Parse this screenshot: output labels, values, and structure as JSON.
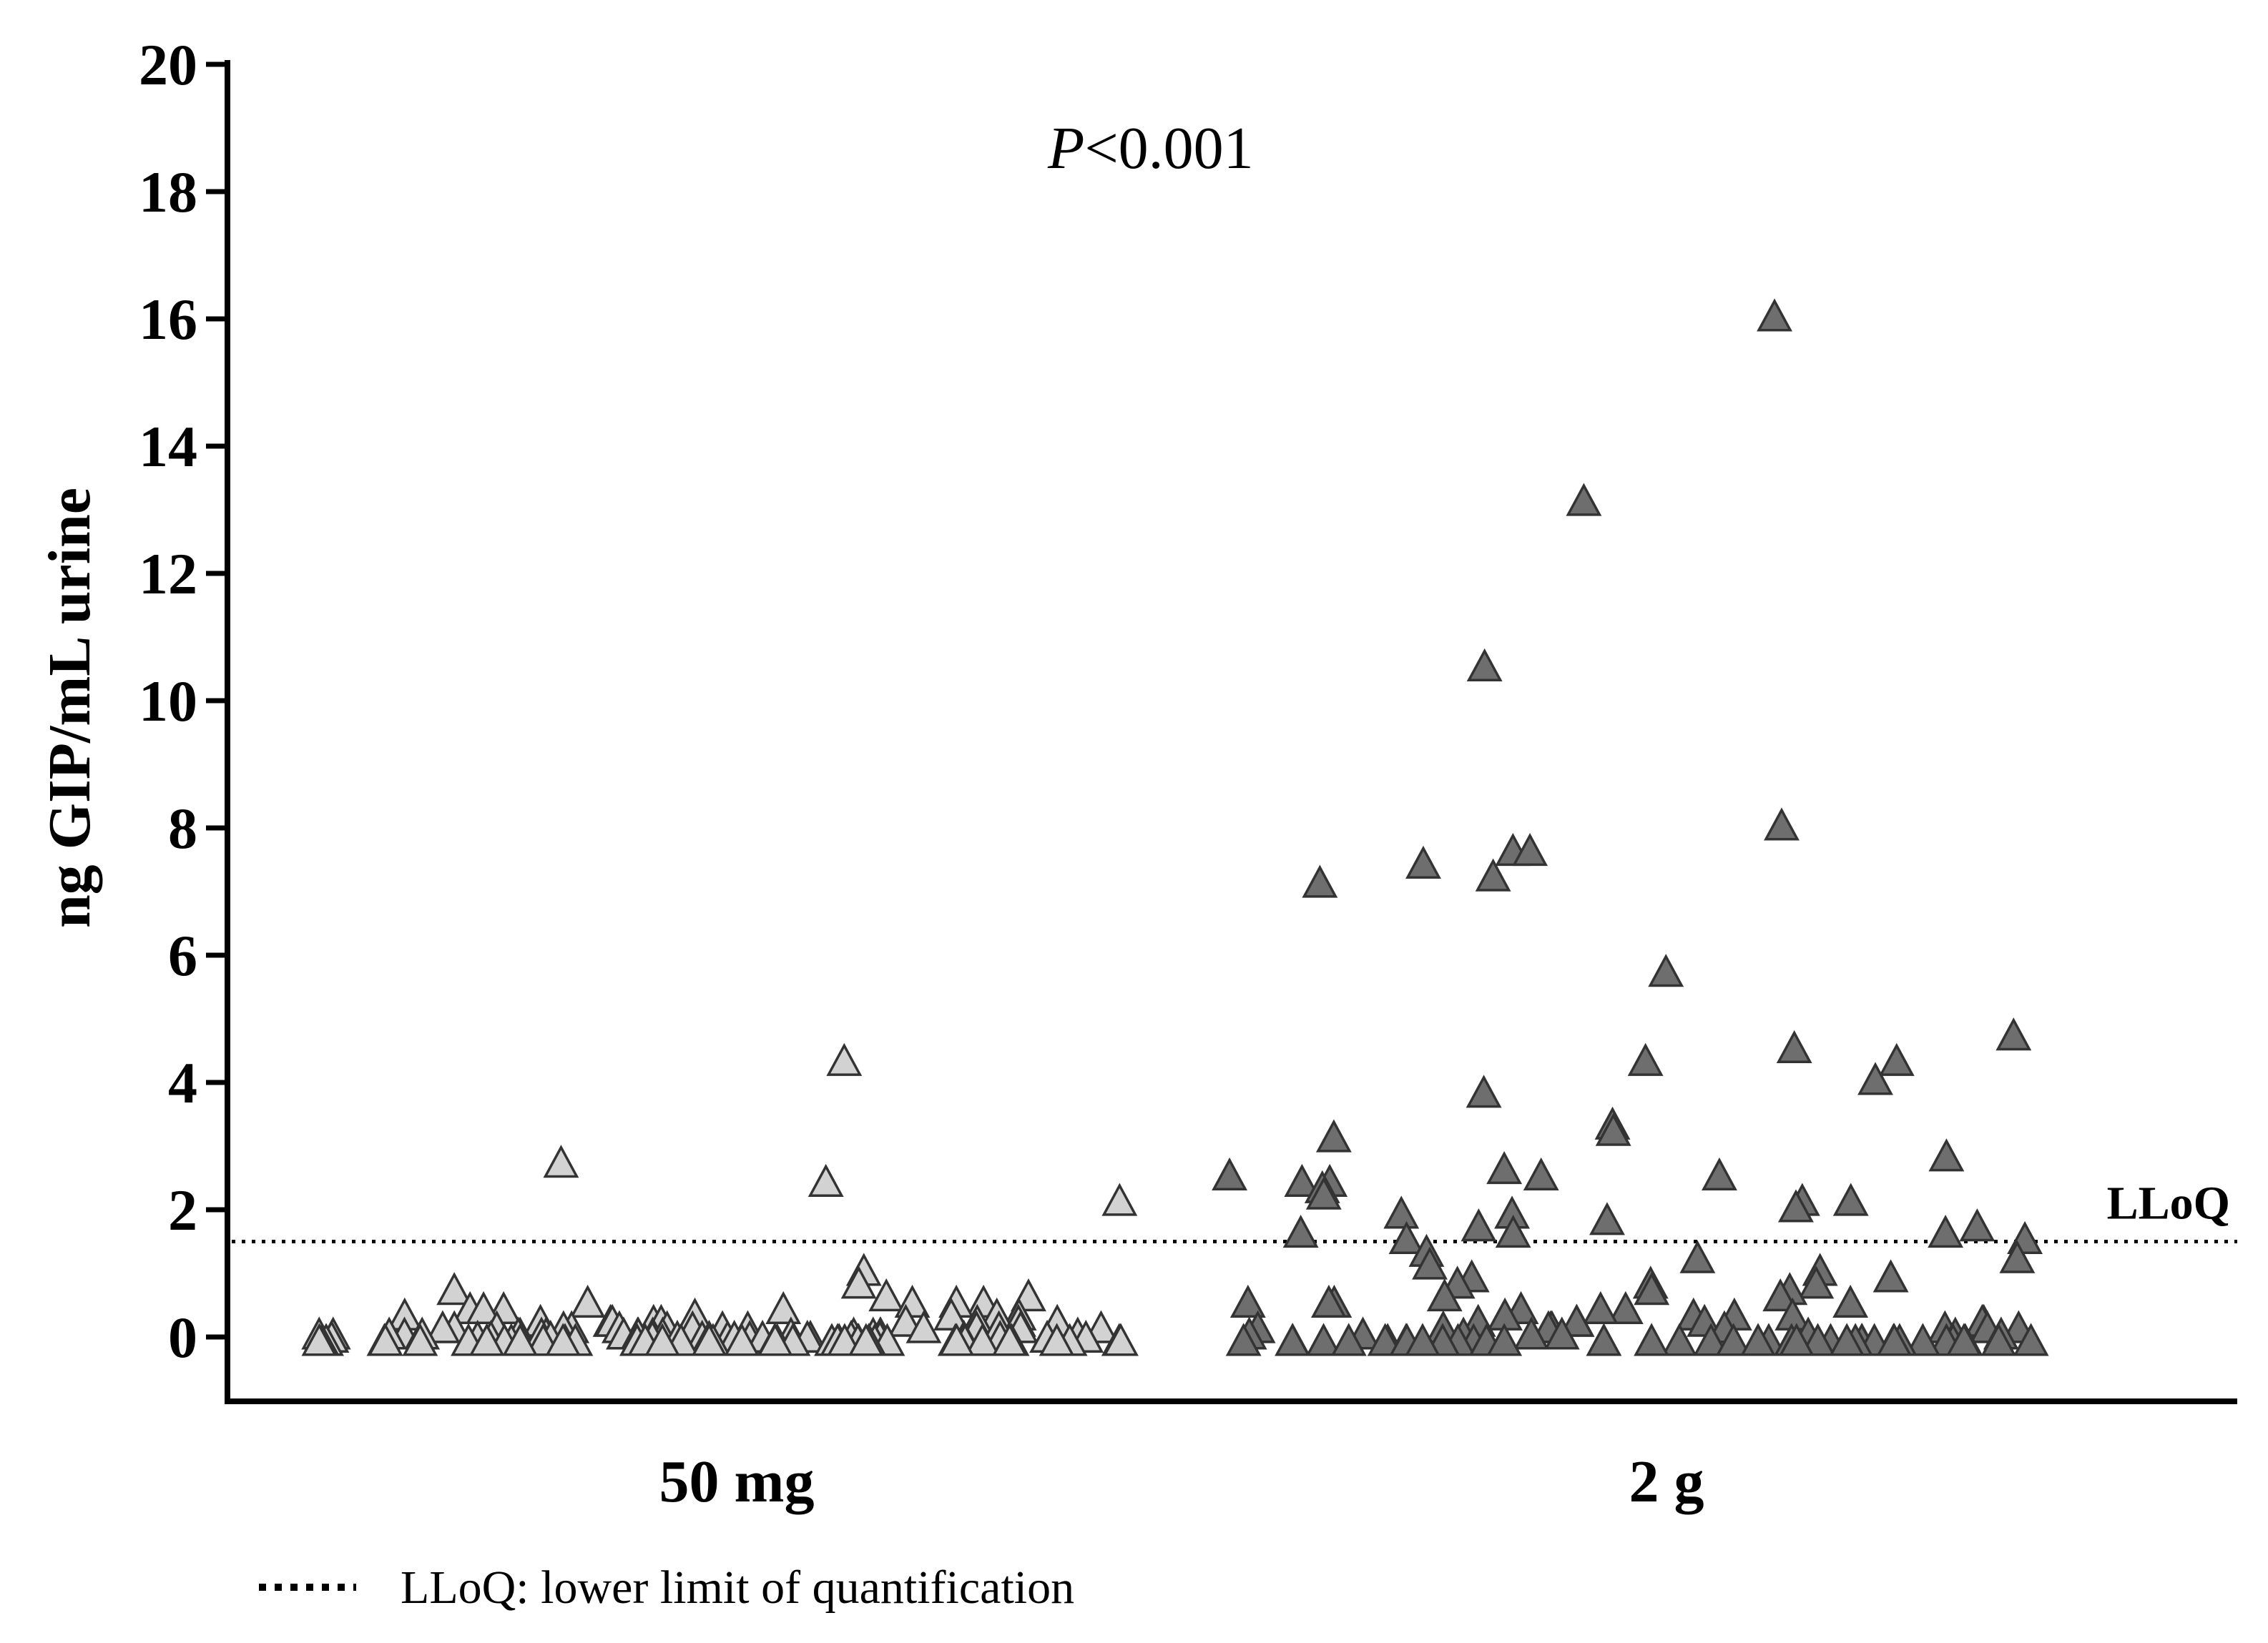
{
  "chart_data": {
    "type": "scatter",
    "ylabel": "ng GIP/mL urine",
    "ylim": [
      -1,
      20
    ],
    "yticks": [
      "0",
      "2",
      "4",
      "6",
      "8",
      "10",
      "12",
      "14",
      "16",
      "18",
      "20"
    ],
    "categories": [
      "50 mg",
      "2 g"
    ],
    "annotation": {
      "italic": "P",
      "rest": "<0.001"
    },
    "reference_line": {
      "value": 1.5,
      "label": "LLoQ",
      "style": "dotted"
    },
    "legend": {
      "text": "LLoQ: lower limit of quantification",
      "placement": "bottom-left"
    },
    "colors": {
      "group_50mg": "#d2d2d2",
      "group_2g": "#6e6e6e",
      "edge": "#333333"
    },
    "series": [
      {
        "name": "50 mg",
        "values": [
          4.4,
          2.8,
          2.5,
          2.2,
          1.1,
          0.9,
          0.8,
          0.7,
          0.7,
          0.6,
          0.6,
          0.6,
          0.6,
          0.5,
          0.5,
          0.5,
          0.5,
          0.4,
          0.4,
          0.4,
          0.4,
          0.4,
          0.3,
          0.3,
          0.3,
          0.3,
          0.3,
          0.3,
          0.3,
          0.3,
          0.3,
          0.2,
          0.2,
          0.2,
          0.2,
          0.2,
          0.2,
          0.2,
          0.2,
          0.2,
          0.2,
          0.2,
          0.2,
          0.2,
          0.2,
          0.2,
          0.1,
          0.1,
          0.1,
          0.1,
          0.1,
          0.1,
          0.1,
          0.1,
          0.1,
          0.1,
          0.1,
          0.1,
          0.1,
          0.1,
          0.1,
          0.1,
          0.1,
          0.1,
          0.1,
          0.1,
          0.05,
          0.05,
          0.05,
          0.05,
          0.05,
          0.05,
          0.05,
          0.05,
          0.05,
          0.05,
          0.05,
          0.05,
          0.05,
          0.05,
          0.05,
          0.05,
          0.05,
          0.05,
          0.05,
          0.05,
          0,
          0,
          0,
          0,
          0,
          0,
          0,
          0,
          0,
          0,
          0,
          0,
          0,
          0,
          0,
          0,
          0,
          0,
          0,
          0,
          0,
          0,
          0,
          0,
          0,
          0,
          0,
          0,
          0,
          0,
          0,
          0,
          0,
          0,
          0,
          0,
          0,
          0,
          0,
          0,
          0,
          0,
          0,
          0,
          0,
          0,
          0,
          0,
          0,
          0
        ]
      },
      {
        "name": "2 g",
        "values": [
          16.1,
          13.2,
          10.6,
          8.1,
          7.7,
          7.7,
          7.5,
          7.3,
          7.2,
          5.8,
          4.8,
          4.6,
          4.4,
          4.4,
          4.1,
          3.9,
          3.4,
          3.3,
          3.2,
          2.9,
          2.7,
          2.6,
          2.6,
          2.6,
          2.5,
          2.5,
          2.4,
          2.3,
          2.2,
          2.2,
          2.1,
          2.0,
          2.0,
          1.9,
          1.8,
          1.8,
          1.7,
          1.7,
          1.7,
          1.6,
          1.6,
          1.4,
          1.3,
          1.3,
          1.2,
          1.1,
          1.0,
          1.0,
          0.9,
          0.9,
          0.9,
          0.8,
          0.8,
          0.7,
          0.7,
          0.6,
          0.6,
          0.6,
          0.6,
          0.5,
          0.5,
          0.5,
          0.4,
          0.4,
          0.4,
          0.4,
          0.3,
          0.3,
          0.3,
          0.3,
          0.3,
          0.3,
          0.2,
          0.2,
          0.2,
          0.2,
          0.2,
          0.2,
          0.2,
          0.2,
          0.2,
          0.1,
          0.1,
          0.1,
          0.1,
          0.1,
          0.1,
          0.1,
          0.1,
          0,
          0,
          0,
          0,
          0,
          0,
          0,
          0,
          0,
          0,
          0,
          0,
          0,
          0,
          0,
          0,
          0,
          0,
          0,
          0,
          0,
          0,
          0,
          0,
          0,
          0,
          0,
          0,
          0,
          0,
          0,
          0,
          0,
          0,
          0,
          0,
          0,
          0,
          0,
          0,
          0
        ]
      }
    ]
  }
}
